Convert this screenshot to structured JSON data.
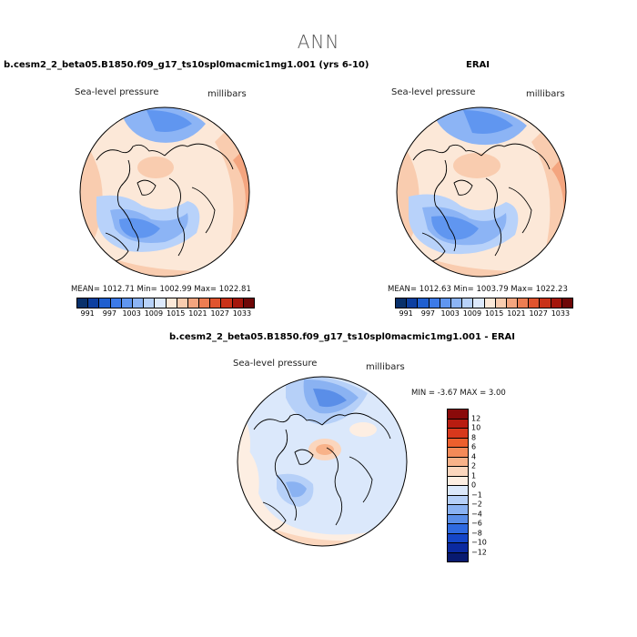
{
  "main_title": "ANN",
  "panel_left": {
    "title": "b.cesm2_2_beta05.B1850.f09_g17_ts10spl0macmic1mg1.001 (yrs 6-10)",
    "variable": "Sea-level pressure",
    "units": "millibars",
    "stats": "MEAN= 1012.71   Min= 1002.99   Max= 1022.81"
  },
  "panel_right": {
    "title": "ERAI",
    "variable": "Sea-level pressure",
    "units": "millibars",
    "stats": "MEAN= 1012.63   Min= 1003.79   Max= 1022.23"
  },
  "panel_diff": {
    "title": "b.cesm2_2_beta05.B1850.f09_g17_ts10spl0macmic1mg1.001 - ERAI",
    "variable": "Sea-level pressure",
    "units": "millibars",
    "stats": "MIN =   -3.67 MAX =   3.00"
  },
  "abs_colorbar": {
    "colors": [
      "#08306b",
      "#0d3fa0",
      "#1f5fd0",
      "#3c7ae8",
      "#6096f0",
      "#8cb4f5",
      "#b8d2fa",
      "#dde9fc",
      "#fce8d8",
      "#f9ccaf",
      "#f4a57f",
      "#ec7d52",
      "#e0542e",
      "#c93218",
      "#a4160b",
      "#6e0707"
    ],
    "labels": [
      "991",
      "997",
      "1003",
      "1009",
      "1015",
      "1021",
      "1027",
      "1033"
    ]
  },
  "diff_colorbar": {
    "colors": [
      "#8a0a0a",
      "#b81c10",
      "#d8381c",
      "#ec5f2d",
      "#f48a58",
      "#f8b289",
      "#fbd6bd",
      "#fdeee2",
      "#dbe8fb",
      "#b6d0f8",
      "#8ab2f2",
      "#5a8ee8",
      "#2f6ae0",
      "#1546c8",
      "#0b2aa0",
      "#081a70"
    ],
    "labels": [
      "12",
      "10",
      "8",
      "6",
      "4",
      "2",
      "1",
      "0",
      "−1",
      "−2",
      "−4",
      "−6",
      "−8",
      "−10",
      "−12"
    ]
  }
}
